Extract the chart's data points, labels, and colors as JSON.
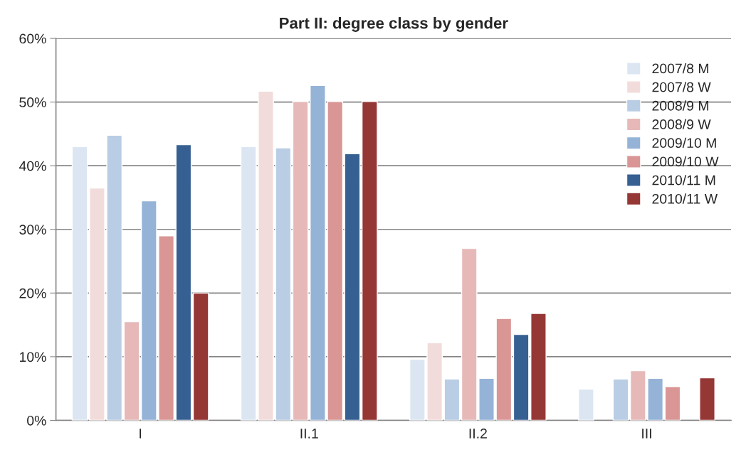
{
  "chart_data": {
    "type": "bar",
    "title": "Part II: degree class by gender",
    "categories": [
      "I",
      "II.1",
      "II.2",
      "III"
    ],
    "series": [
      {
        "name": "2007/8 M",
        "color": "#dce6f2",
        "values": [
          43,
          43,
          9.6,
          4.9
        ]
      },
      {
        "name": "2007/8 W",
        "color": "#f2dcdb",
        "values": [
          36.5,
          51.7,
          12.2,
          null
        ]
      },
      {
        "name": "2008/9 M",
        "color": "#b9cde5",
        "values": [
          44.8,
          42.8,
          6.5,
          6.5
        ]
      },
      {
        "name": "2008/9 W",
        "color": "#e6b9b8",
        "values": [
          15.5,
          50.1,
          27,
          7.8
        ]
      },
      {
        "name": "2009/10 M",
        "color": "#95b3d7",
        "values": [
          34.5,
          52.6,
          6.6,
          6.6
        ]
      },
      {
        "name": "2009/10 W",
        "color": "#d99694",
        "values": [
          29,
          50.1,
          16,
          5.3
        ]
      },
      {
        "name": "2010/11 M",
        "color": "#376092",
        "values": [
          43.3,
          41.9,
          13.5,
          null
        ]
      },
      {
        "name": "2010/11 W",
        "color": "#953735",
        "values": [
          20,
          50.1,
          16.8,
          6.7
        ]
      }
    ],
    "ylim": [
      0,
      60
    ],
    "yticks": [
      {
        "value": 0,
        "label": "0%"
      },
      {
        "value": 10,
        "label": "10%"
      },
      {
        "value": 20,
        "label": "20%"
      },
      {
        "value": 30,
        "label": "30%"
      },
      {
        "value": 40,
        "label": "40%"
      },
      {
        "value": 50,
        "label": "50%"
      },
      {
        "value": 60,
        "label": "60%"
      }
    ],
    "grid": "y",
    "legend": "top right"
  }
}
